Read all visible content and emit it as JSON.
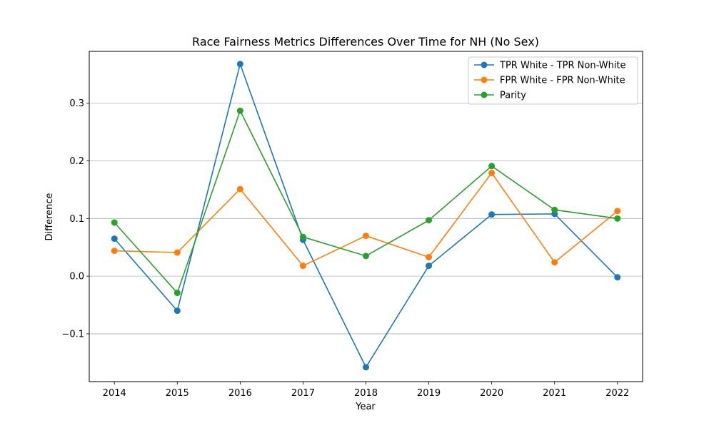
{
  "chart_data": {
    "type": "line",
    "title": "Race Fairness Metrics Differences Over Time for NH (No Sex)",
    "xlabel": "Year",
    "ylabel": "Difference",
    "x": [
      2014,
      2015,
      2016,
      2017,
      2018,
      2019,
      2020,
      2021,
      2022
    ],
    "x_tick_labels": [
      "2014",
      "2015",
      "2016",
      "2017",
      "2018",
      "2019",
      "2020",
      "2021",
      "2022"
    ],
    "y_ticks": [
      -0.1,
      0.0,
      0.1,
      0.2,
      0.3
    ],
    "y_tick_labels": [
      "−0.1",
      "0.0",
      "0.1",
      "0.2",
      "0.3"
    ],
    "xlim": [
      2013.6,
      2022.4
    ],
    "ylim": [
      -0.183,
      0.39
    ],
    "grid": "horizontal",
    "legend_position": "top-right",
    "series": [
      {
        "name": "TPR White - TPR Non-White",
        "color": "#1f77b4",
        "values": [
          0.065,
          -0.06,
          0.368,
          0.063,
          -0.158,
          0.018,
          0.107,
          0.108,
          -0.002
        ]
      },
      {
        "name": "FPR White - FPR Non-White",
        "color": "#ff7f0e",
        "values": [
          0.044,
          0.041,
          0.151,
          0.018,
          0.07,
          0.033,
          0.179,
          0.024,
          0.113
        ]
      },
      {
        "name": "Parity",
        "color": "#2ca02c",
        "values": [
          0.093,
          -0.029,
          0.287,
          0.068,
          0.035,
          0.097,
          0.191,
          0.115,
          0.1
        ]
      }
    ]
  }
}
